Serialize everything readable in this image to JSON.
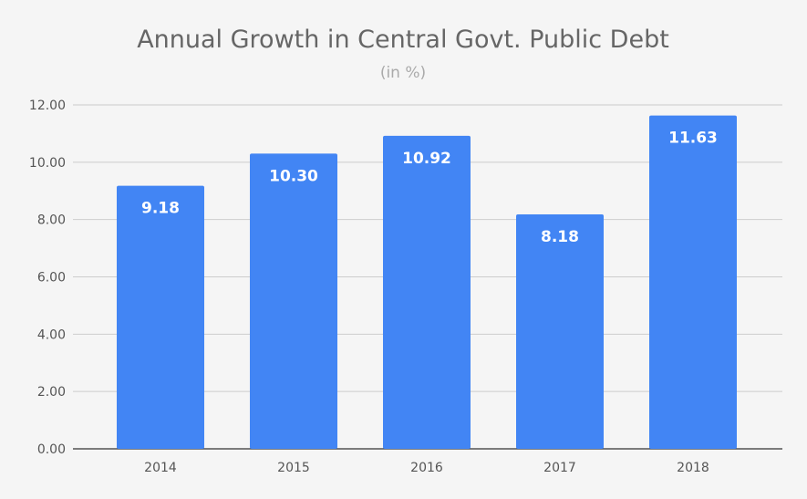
{
  "chart_data": {
    "type": "bar",
    "title": "Annual Growth in Central Govt. Public Debt",
    "subtitle": "(in %)",
    "categories": [
      "2014",
      "2015",
      "2016",
      "2017",
      "2018"
    ],
    "values": [
      9.18,
      10.3,
      10.92,
      8.18,
      11.63
    ],
    "data_labels": [
      "9.18",
      "10.30",
      "10.92",
      "8.18",
      "11.63"
    ],
    "yticks": [
      "0.00",
      "2.00",
      "4.00",
      "6.00",
      "8.00",
      "10.00",
      "12.00"
    ],
    "ylim": [
      0,
      12
    ],
    "grid": true,
    "legend": "none",
    "colors": {
      "bar": "#4285f4",
      "background": "#f5f5f5",
      "grid": "#cccccc"
    }
  }
}
